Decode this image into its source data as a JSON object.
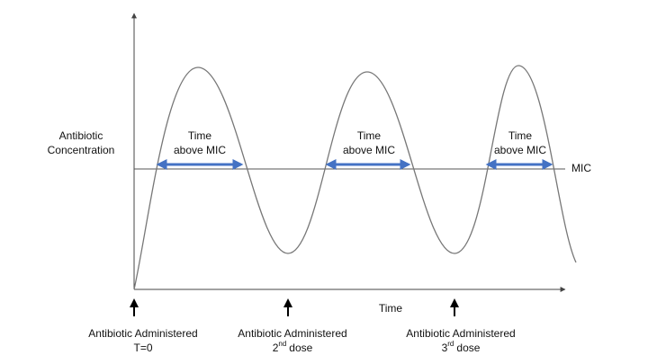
{
  "y_axis_label": [
    "Antibiotic",
    "Concentration"
  ],
  "x_axis_label": "Time",
  "threshold_label": "MIC",
  "intervals": [
    {
      "label": [
        "Time",
        "above MIC"
      ]
    },
    {
      "label": [
        "Time",
        "above MIC"
      ]
    },
    {
      "label": [
        "Time",
        "above MIC"
      ]
    }
  ],
  "doses": [
    {
      "label": "Antibiotic Administered",
      "detail": "T=0"
    },
    {
      "label": "Antibiotic Administered",
      "ordinal": "2",
      "suffix": "nd",
      "detail": "dose"
    },
    {
      "label": "Antibiotic Administered",
      "ordinal": "3",
      "suffix": "rd",
      "detail": "dose"
    }
  ]
}
